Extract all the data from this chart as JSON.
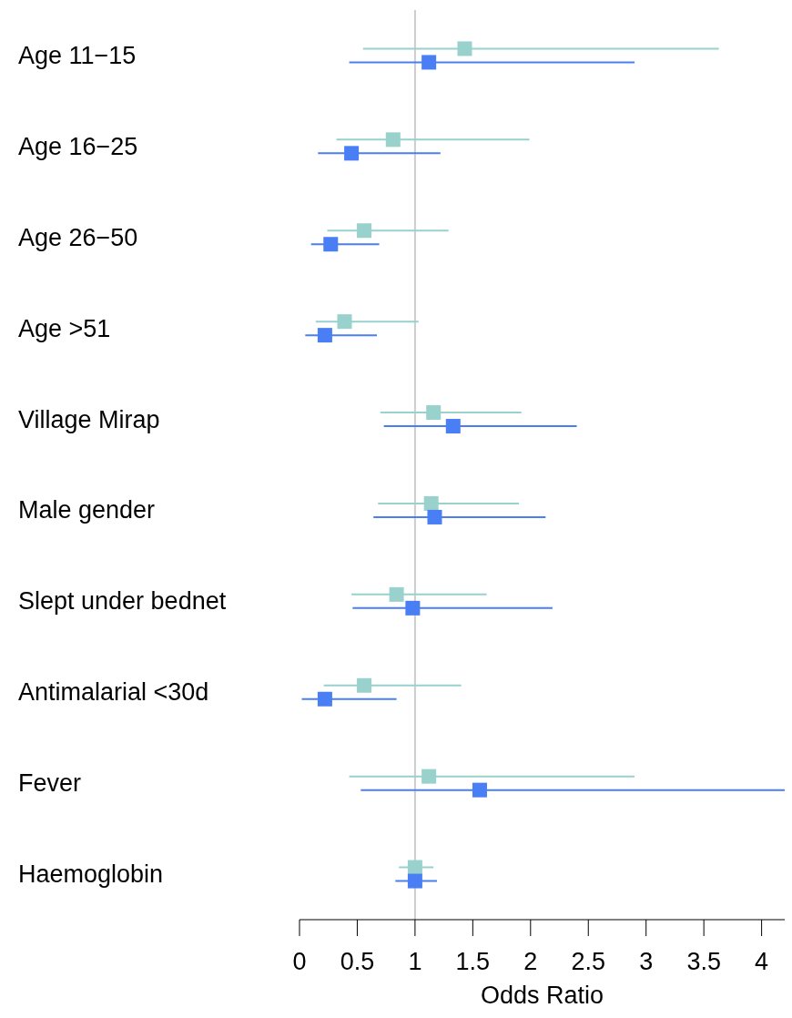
{
  "chart_data": {
    "type": "scatter",
    "orientation": "horizontal",
    "xlabel": "Odds Ratio",
    "categories": [
      "Age 11−15",
      "Age 16−25",
      "Age 26−50",
      "Age >51",
      "Village Mirap",
      "Male gender",
      "Slept under bednet",
      "Antimalarial <30d",
      "Fever",
      "Haemoglobin"
    ],
    "series": [
      {
        "color": "#99d1cc",
        "values": [
          1.43,
          0.81,
          0.56,
          0.39,
          1.16,
          1.14,
          0.84,
          0.56,
          1.12,
          1.0
        ],
        "errors": [
          [
            0.55,
            3.63
          ],
          [
            0.32,
            1.99
          ],
          [
            0.24,
            1.29
          ],
          [
            0.14,
            1.03
          ],
          [
            0.7,
            1.92
          ],
          [
            0.68,
            1.9
          ],
          [
            0.45,
            1.62
          ],
          [
            0.21,
            1.4
          ],
          [
            0.43,
            2.9
          ],
          [
            0.86,
            1.16
          ]
        ]
      },
      {
        "color": "#4a7ef5",
        "values": [
          1.12,
          0.45,
          0.27,
          0.22,
          1.33,
          1.17,
          0.98,
          0.22,
          1.56,
          1.0
        ],
        "errors": [
          [
            0.43,
            2.9
          ],
          [
            0.16,
            1.22
          ],
          [
            0.1,
            0.69
          ],
          [
            0.05,
            0.67
          ],
          [
            0.73,
            2.4
          ],
          [
            0.64,
            2.13
          ],
          [
            0.46,
            2.19
          ],
          [
            0.02,
            0.84
          ],
          [
            0.53,
            4.2
          ],
          [
            0.83,
            1.19
          ]
        ]
      }
    ],
    "xlim": [
      0,
      4.2
    ],
    "xticks": [
      0,
      0.5,
      1,
      1.5,
      2,
      2.5,
      3,
      3.5,
      4
    ],
    "marker": "square",
    "ref_lines": [
      {
        "axis": "x",
        "value": 1,
        "color": "#cccccc"
      }
    ]
  }
}
